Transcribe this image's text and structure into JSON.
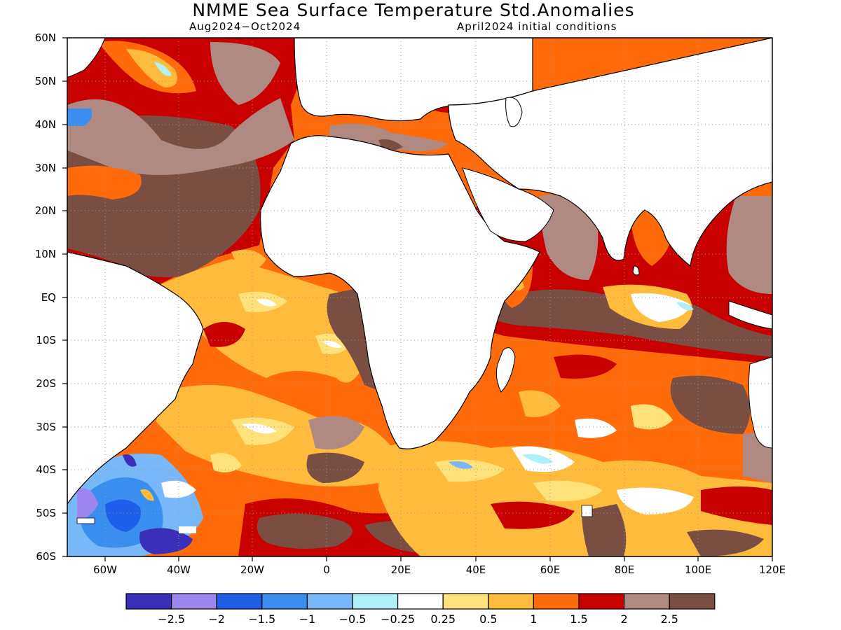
{
  "header": {
    "title": "NMME Sea Surface Temperature Std.Anomalies",
    "period": "Aug2024−Oct2024",
    "init": "April2024 initial conditions"
  },
  "axes": {
    "lat_labels": [
      "60N",
      "50N",
      "40N",
      "30N",
      "20N",
      "10N",
      "EQ",
      "10S",
      "20S",
      "30S",
      "40S",
      "50S",
      "60S"
    ],
    "lon_labels": [
      "60W",
      "40W",
      "20W",
      "0",
      "20E",
      "40E",
      "60E",
      "80E",
      "100E",
      "120E"
    ]
  },
  "colorbar": {
    "colors": [
      "#3a2fb8",
      "#9d86f0",
      "#1e5ee8",
      "#3a8ef0",
      "#78b8f8",
      "#b0f0f8",
      "#ffffff",
      "#ffe27a",
      "#ffbc3c",
      "#ff6a0a",
      "#c80000",
      "#b08a82",
      "#7a4e42"
    ],
    "tick_labels": [
      "−2.5",
      "−2",
      "−1.5",
      "−1",
      "−0.5",
      "−0.25",
      "0.25",
      "0.5",
      "1",
      "1.5",
      "2",
      "2.5"
    ]
  },
  "map": {
    "land_color": "#ffffff",
    "ocean_base": "#ff6a0a",
    "grid": "dotted"
  }
}
